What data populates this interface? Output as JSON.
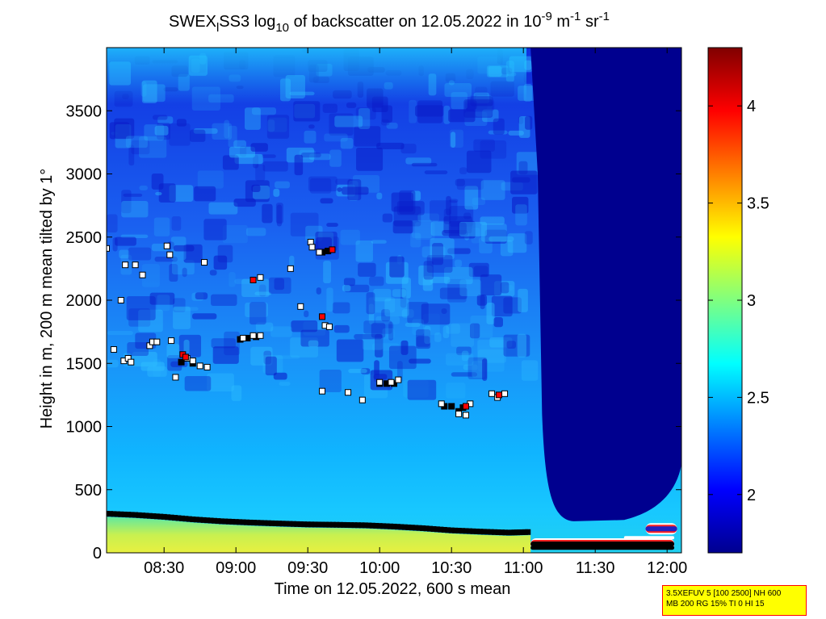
{
  "chart_data": {
    "type": "heatmap",
    "title_parts": {
      "main": "SWEX",
      "sub_l": "l",
      "name": "SS3 log",
      "sub_10": "10",
      "rest": " of backscatter on 12.05.2022 in 10",
      "exp1": "-9",
      "mid": " m",
      "exp2": "-1",
      "mid2": " sr",
      "exp3": "-1"
    },
    "xlabel": "Time on 12.05.2022, 600 s mean",
    "ylabel": "Height in m, 200 m mean tilted by 1°",
    "x_ticks": [
      "08:30",
      "09:00",
      "09:30",
      "10:00",
      "10:30",
      "11:00",
      "11:30",
      "12:00"
    ],
    "x_tick_hours": [
      8.5,
      9.0,
      9.5,
      10.0,
      10.5,
      11.0,
      11.5,
      12.0
    ],
    "xlim_hours": [
      8.1,
      12.1
    ],
    "y_ticks": [
      "0",
      "500",
      "1000",
      "1500",
      "2000",
      "2500",
      "3000",
      "3500"
    ],
    "y_tick_values": [
      0,
      500,
      1000,
      1500,
      2000,
      2500,
      3000,
      3500
    ],
    "ylim": [
      0,
      4000
    ],
    "colorbar": {
      "ticks": [
        "2",
        "2.5",
        "3",
        "3.5",
        "4"
      ],
      "tick_values": [
        2,
        2.5,
        3,
        3.5,
        4
      ],
      "range": [
        1.7,
        4.3
      ],
      "colormap": "jet"
    },
    "boundary_layer_top_m": [
      {
        "t": 8.1,
        "h": 310
      },
      {
        "t": 8.3,
        "h": 300
      },
      {
        "t": 8.5,
        "h": 285
      },
      {
        "t": 8.7,
        "h": 265
      },
      {
        "t": 8.9,
        "h": 250
      },
      {
        "t": 9.1,
        "h": 240
      },
      {
        "t": 9.3,
        "h": 232
      },
      {
        "t": 9.5,
        "h": 225
      },
      {
        "t": 9.7,
        "h": 222
      },
      {
        "t": 9.9,
        "h": 218
      },
      {
        "t": 10.1,
        "h": 208
      },
      {
        "t": 10.3,
        "h": 195
      },
      {
        "t": 10.5,
        "h": 178
      },
      {
        "t": 10.7,
        "h": 168
      },
      {
        "t": 10.9,
        "h": 160
      },
      {
        "t": 11.05,
        "h": 165
      }
    ],
    "white_markers": [
      {
        "t": 8.1,
        "h": 2410
      },
      {
        "t": 8.15,
        "h": 1610
      },
      {
        "t": 8.2,
        "h": 2000
      },
      {
        "t": 8.22,
        "h": 1520
      },
      {
        "t": 8.25,
        "h": 1540
      },
      {
        "t": 8.27,
        "h": 1510
      },
      {
        "t": 8.23,
        "h": 2280
      },
      {
        "t": 8.3,
        "h": 2280
      },
      {
        "t": 8.35,
        "h": 2200
      },
      {
        "t": 8.4,
        "h": 1640
      },
      {
        "t": 8.42,
        "h": 1670
      },
      {
        "t": 8.45,
        "h": 1670
      },
      {
        "t": 8.52,
        "h": 2430
      },
      {
        "t": 8.54,
        "h": 2360
      },
      {
        "t": 8.55,
        "h": 1680
      },
      {
        "t": 8.58,
        "h": 1390
      },
      {
        "t": 8.66,
        "h": 1540
      },
      {
        "t": 8.7,
        "h": 1520
      },
      {
        "t": 8.75,
        "h": 1480
      },
      {
        "t": 8.78,
        "h": 2300
      },
      {
        "t": 8.8,
        "h": 1470
      },
      {
        "t": 9.05,
        "h": 1700
      },
      {
        "t": 9.12,
        "h": 1720
      },
      {
        "t": 9.17,
        "h": 1720
      },
      {
        "t": 9.17,
        "h": 2180
      },
      {
        "t": 9.38,
        "h": 2250
      },
      {
        "t": 9.45,
        "h": 1950
      },
      {
        "t": 9.52,
        "h": 2460
      },
      {
        "t": 9.53,
        "h": 2420
      },
      {
        "t": 9.58,
        "h": 2380
      },
      {
        "t": 9.6,
        "h": 1280
      },
      {
        "t": 9.62,
        "h": 1800
      },
      {
        "t": 9.65,
        "h": 1790
      },
      {
        "t": 9.78,
        "h": 1270
      },
      {
        "t": 9.88,
        "h": 1210
      },
      {
        "t": 10.0,
        "h": 1350
      },
      {
        "t": 10.08,
        "h": 1350
      },
      {
        "t": 10.13,
        "h": 1370
      },
      {
        "t": 10.43,
        "h": 1180
      },
      {
        "t": 10.55,
        "h": 1100
      },
      {
        "t": 10.6,
        "h": 1090
      },
      {
        "t": 10.63,
        "h": 1180
      },
      {
        "t": 10.78,
        "h": 1260
      },
      {
        "t": 10.82,
        "h": 1230
      },
      {
        "t": 10.87,
        "h": 1260
      }
    ],
    "red_markers": [
      {
        "t": 8.63,
        "h": 1570
      },
      {
        "t": 8.65,
        "h": 1550
      },
      {
        "t": 9.12,
        "h": 2160
      },
      {
        "t": 9.6,
        "h": 1870
      },
      {
        "t": 9.67,
        "h": 2400
      },
      {
        "t": 10.6,
        "h": 1160
      },
      {
        "t": 10.83,
        "h": 1250
      }
    ],
    "black_markers": [
      {
        "t": 9.03,
        "h": 1690
      },
      {
        "t": 9.08,
        "h": 1700
      },
      {
        "t": 9.14,
        "h": 1710
      },
      {
        "t": 9.6,
        "h": 2380
      },
      {
        "t": 9.64,
        "h": 2390
      },
      {
        "t": 10.0,
        "h": 1340
      },
      {
        "t": 10.05,
        "h": 1340
      },
      {
        "t": 10.1,
        "h": 1340
      },
      {
        "t": 10.45,
        "h": 1160
      },
      {
        "t": 10.5,
        "h": 1160
      },
      {
        "t": 10.55,
        "h": 1120
      },
      {
        "t": 10.58,
        "h": 1150
      },
      {
        "t": 8.62,
        "h": 1510
      },
      {
        "t": 8.7,
        "h": 1500
      }
    ]
  },
  "info_box": {
    "line1": "3.5XEFUV 5 [100 2500] NH 600",
    "line2": "MB 200 RG 15% TI 0 HI 15"
  },
  "colors": {
    "background": "#ffffff",
    "deep_blue": "#00008f",
    "blue": "#0040ff",
    "cyan": "#00c8ff",
    "marker_red": "#ff0000",
    "info_box_bg": "#ffff00",
    "info_box_border": "#ff0000"
  }
}
